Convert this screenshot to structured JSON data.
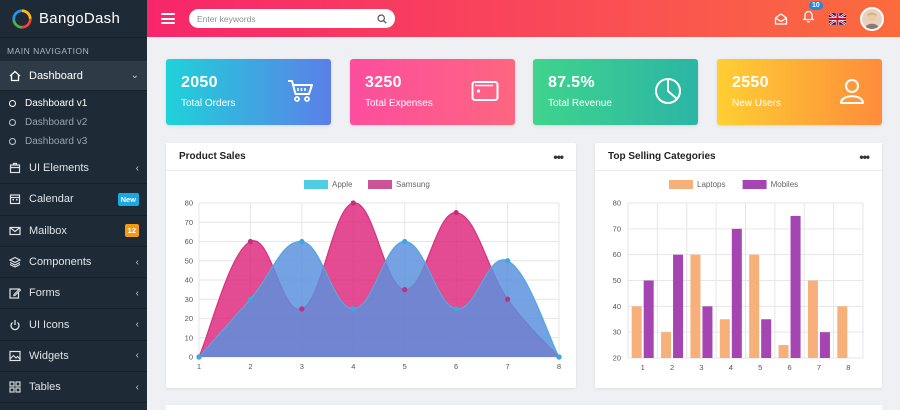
{
  "brand": {
    "name": "BangoDash"
  },
  "sidebar": {
    "header": "MAIN NAVIGATION",
    "dashboard": {
      "label": "Dashboard"
    },
    "sub_items": [
      {
        "label": "Dashboard v1"
      },
      {
        "label": "Dashboard v2"
      },
      {
        "label": "Dashboard v3"
      }
    ],
    "items": [
      {
        "label": "UI Elements"
      },
      {
        "label": "Calendar",
        "badge": "New"
      },
      {
        "label": "Mailbox",
        "badge": "12"
      },
      {
        "label": "Components"
      },
      {
        "label": "Forms"
      },
      {
        "label": "UI Icons"
      },
      {
        "label": "Widgets"
      },
      {
        "label": "Tables"
      }
    ]
  },
  "topbar": {
    "search_placeholder": "Enter keywords",
    "notif_count": "10"
  },
  "stats": [
    {
      "value": "2050",
      "label": "Total Orders",
      "icon": "cart-icon"
    },
    {
      "value": "3250",
      "label": "Total Expenses",
      "icon": "wallet-icon"
    },
    {
      "value": "87.5%",
      "label": "Total Revenue",
      "icon": "pie-icon"
    },
    {
      "value": "2550",
      "label": "New Users",
      "icon": "user-icon"
    }
  ],
  "panels": {
    "product_sales": {
      "title": "Product Sales",
      "menu": "•••"
    },
    "top_selling": {
      "title": "Top Selling Categories",
      "menu": "•••"
    }
  },
  "chart_data": [
    {
      "type": "area",
      "x": [
        1,
        2,
        3,
        4,
        5,
        6,
        7,
        8
      ],
      "series": [
        {
          "name": "Apple",
          "values": [
            0,
            30,
            60,
            25,
            60,
            25,
            50,
            0
          ],
          "color": "#3ec8e0"
        },
        {
          "name": "Samsung",
          "values": [
            0,
            60,
            25,
            80,
            35,
            75,
            30,
            0
          ],
          "color": "#c8408c"
        }
      ],
      "ylim": [
        0,
        80
      ],
      "yticks": [
        0,
        10,
        20,
        30,
        40,
        50,
        60,
        70,
        80
      ],
      "legend": "top"
    },
    {
      "type": "bar",
      "categories": [
        "1",
        "2",
        "3",
        "4",
        "5",
        "6",
        "7",
        "8"
      ],
      "series": [
        {
          "name": "Laptops",
          "values": [
            40,
            30,
            60,
            35,
            60,
            25,
            50,
            40
          ],
          "color": "#f7b07a"
        },
        {
          "name": "Mobiles",
          "values": [
            50,
            60,
            40,
            70,
            35,
            75,
            30,
            null
          ],
          "color": "#a445b2"
        }
      ],
      "ylim": [
        20,
        80
      ],
      "yticks": [
        20,
        30,
        40,
        50,
        60,
        70,
        80
      ],
      "legend": "top"
    }
  ]
}
